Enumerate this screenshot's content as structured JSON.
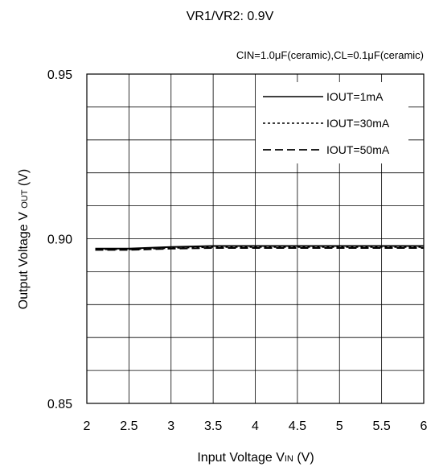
{
  "chart_data": {
    "type": "line",
    "title": "VR1/VR2: 0.9V",
    "subtitle": "CIN=1.0μF(ceramic),CL=0.1μF(ceramic)",
    "xlabel": {
      "main": "Input Voltage V",
      "sub": "IN",
      "unit": " (V)"
    },
    "ylabel": {
      "main": "Output Voltage V ",
      "sub": "OUT",
      "unit": " (V)"
    },
    "xlim": [
      2,
      6
    ],
    "ylim": [
      0.85,
      0.95
    ],
    "x_ticks": [
      2,
      2.5,
      3,
      3.5,
      4,
      4.5,
      5,
      5.5,
      6
    ],
    "x_tick_labels": [
      "2",
      "2.5",
      "3",
      "3.5",
      "4",
      "4.5",
      "5",
      "5.5",
      "6"
    ],
    "y_ticks": [
      0.85,
      0.9,
      0.95
    ],
    "y_tick_labels": [
      "0.85",
      "0.90",
      "0.95"
    ],
    "grid": true,
    "legend_position": "top-right",
    "series": [
      {
        "name": "IOUT=1mA",
        "style": "solid",
        "x": [
          2.1,
          2.5,
          3.0,
          3.5,
          4.0,
          4.5,
          5.0,
          5.5,
          6.0
        ],
        "values": [
          0.897,
          0.897,
          0.8975,
          0.8978,
          0.8978,
          0.8978,
          0.8978,
          0.8978,
          0.8978
        ]
      },
      {
        "name": "IOUT=30mA",
        "style": "dotted",
        "x": [
          2.1,
          2.5,
          3.0,
          3.5,
          4.0,
          4.5,
          5.0,
          5.5,
          6.0
        ],
        "values": [
          0.8968,
          0.8968,
          0.8972,
          0.8975,
          0.8975,
          0.8975,
          0.8975,
          0.8975,
          0.8975
        ]
      },
      {
        "name": "IOUT=50mA",
        "style": "dashed",
        "x": [
          2.1,
          2.5,
          3.0,
          3.5,
          4.0,
          4.5,
          5.0,
          5.5,
          6.0
        ],
        "values": [
          0.8966,
          0.8966,
          0.897,
          0.8972,
          0.8972,
          0.8972,
          0.8972,
          0.8972,
          0.8972
        ]
      }
    ]
  }
}
